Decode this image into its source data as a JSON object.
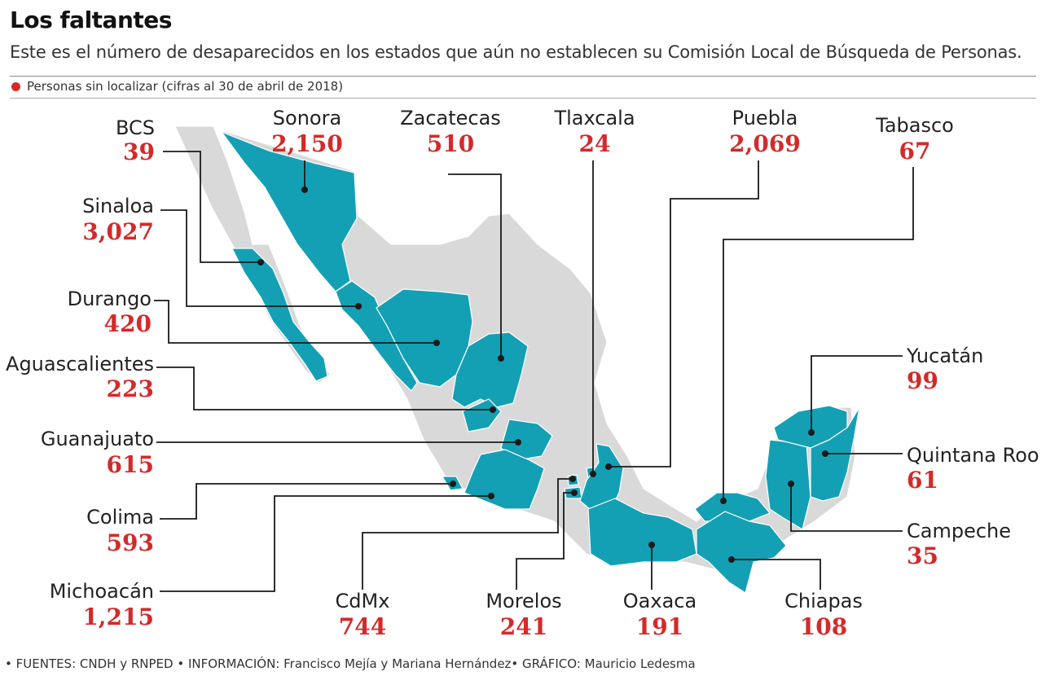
{
  "title": "Los faltantes",
  "subtitle": "Este es el número de desaparecidos en los estados que aún no establecen su Comisión Local de Búsqueda de Personas.",
  "legend": "Personas sin localizar (cifras al 30 de abril de 2018)",
  "sources": "• FUENTES: CNDH y RNPED • INFORMACIÓN: Francisco Mejía y Mariana Hernández• GRÁFICO: Mauricio Ledesma",
  "colors": {
    "highlight": "#14a0b4",
    "base": "#d9d9d9",
    "value": "#d42a2a"
  },
  "states": [
    {
      "name": "BCS",
      "value": "39"
    },
    {
      "name": "Sonora",
      "value": "2,150"
    },
    {
      "name": "Zacatecas",
      "value": "510"
    },
    {
      "name": "Tlaxcala",
      "value": "24"
    },
    {
      "name": "Puebla",
      "value": "2,069"
    },
    {
      "name": "Tabasco",
      "value": "67"
    },
    {
      "name": "Sinaloa",
      "value": "3,027"
    },
    {
      "name": "Durango",
      "value": "420"
    },
    {
      "name": "Aguascalientes",
      "value": "223"
    },
    {
      "name": "Guanajuato",
      "value": "615"
    },
    {
      "name": "Colima",
      "value": "593"
    },
    {
      "name": "Michoacán",
      "value": "1,215"
    },
    {
      "name": "Yucatán",
      "value": "99"
    },
    {
      "name": "Quintana Roo",
      "value": "61"
    },
    {
      "name": "Campeche",
      "value": "35"
    },
    {
      "name": "CdMx",
      "value": "744"
    },
    {
      "name": "Morelos",
      "value": "241"
    },
    {
      "name": "Oaxaca",
      "value": "191"
    },
    {
      "name": "Chiapas",
      "value": "108"
    }
  ]
}
